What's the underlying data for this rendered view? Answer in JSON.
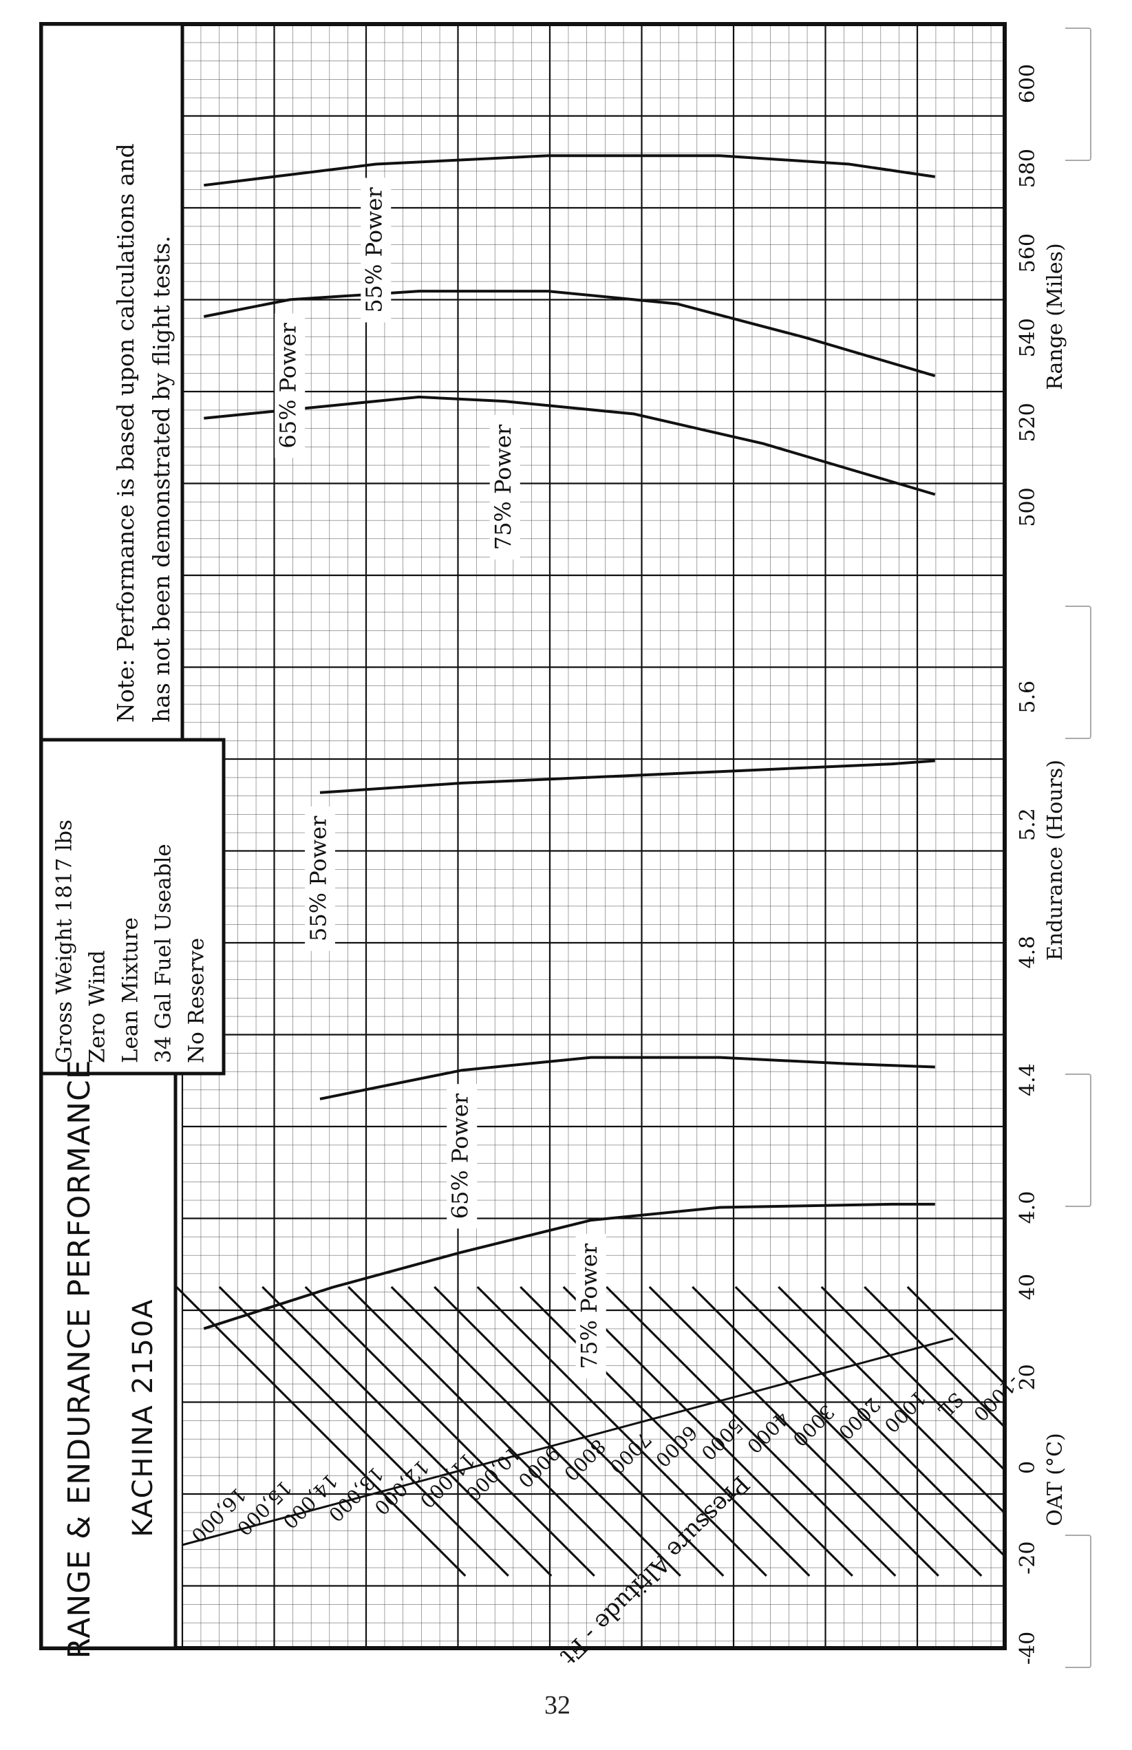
{
  "page": {
    "page_number": "32"
  },
  "chart_data": {
    "type": "line",
    "orientation": "rotated-90-counterclockwise",
    "title": "RANGE & ENDURANCE PERFORMANCE",
    "subtitle": "KACHINA 2150A",
    "conditions": [
      "Gross Weight 1817 lbs",
      "Zero Wind",
      "Lean Mixture",
      "34 Gal Fuel Useable",
      "No Reserve"
    ],
    "note_lines": [
      "Note: Performance is based upon calculations and",
      "has not been demonstrated by flight tests."
    ],
    "oat_axis": {
      "label": "OAT (°C)",
      "ticks": [
        "-40",
        "-20",
        "0",
        "20",
        "40"
      ],
      "range": [
        -40,
        40
      ]
    },
    "endurance_axis": {
      "label": "Endurance (Hours)",
      "ticks": [
        "4.0",
        "4.4",
        "4.8",
        "5.2",
        "5.6"
      ],
      "range": [
        3.6,
        5.8
      ]
    },
    "range_axis": {
      "label": "Range (Miles)",
      "ticks": [
        "500",
        "520",
        "540",
        "560",
        "580",
        "600"
      ],
      "range": [
        480,
        610
      ]
    },
    "altitude_label": "Pressure Altitude - Ft",
    "pressure_altitude_lines": [
      "16,000",
      "15,000",
      "14,000",
      "13,000",
      "12,000",
      "11,000",
      "10,000",
      "9000",
      "8000",
      "7000",
      "6000",
      "5000",
      "4000",
      "3000",
      "2000",
      "1000",
      "SL",
      "-1000"
    ],
    "series": [
      {
        "name": "75% Power",
        "panel": "endurance",
        "points": [
          [
            16000,
            3.62
          ],
          [
            13000,
            3.75
          ],
          [
            10000,
            3.86
          ],
          [
            7000,
            3.96
          ],
          [
            4000,
            4.0
          ],
          [
            0,
            4.01
          ],
          [
            -1000,
            4.01
          ]
        ]
      },
      {
        "name": "65% Power",
        "panel": "endurance",
        "points": [
          [
            13300,
            4.34
          ],
          [
            10000,
            4.43
          ],
          [
            7000,
            4.47
          ],
          [
            4000,
            4.47
          ],
          [
            1000,
            4.45
          ],
          [
            -1000,
            4.44
          ]
        ]
      },
      {
        "name": "55% Power",
        "panel": "endurance",
        "points": [
          [
            13300,
            5.3
          ],
          [
            10000,
            5.33
          ],
          [
            5000,
            5.36
          ],
          [
            0,
            5.39
          ],
          [
            -1000,
            5.4
          ]
        ]
      },
      {
        "name": "75% Power",
        "panel": "range",
        "points": [
          [
            16000,
            521
          ],
          [
            13000,
            524
          ],
          [
            11000,
            526
          ],
          [
            9000,
            525
          ],
          [
            6000,
            522
          ],
          [
            3000,
            515
          ],
          [
            0,
            506
          ],
          [
            -1000,
            503
          ]
        ]
      },
      {
        "name": "65% Power",
        "panel": "range",
        "points": [
          [
            16000,
            545
          ],
          [
            14000,
            549
          ],
          [
            11000,
            551
          ],
          [
            8000,
            551
          ],
          [
            5000,
            548
          ],
          [
            2000,
            540
          ],
          [
            -1000,
            531
          ]
        ]
      },
      {
        "name": "55% Power",
        "panel": "range",
        "points": [
          [
            16000,
            576
          ],
          [
            12000,
            581
          ],
          [
            8000,
            583
          ],
          [
            4000,
            583
          ],
          [
            1000,
            581
          ],
          [
            -1000,
            578
          ]
        ]
      }
    ],
    "grid": true,
    "temperature_altitude_line": "diagonal reference line across OAT panel"
  }
}
